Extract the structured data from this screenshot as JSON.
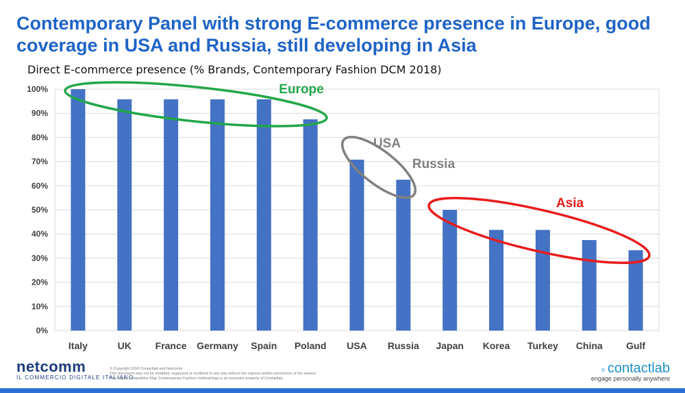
{
  "title": "Contemporary Panel with strong E-commerce presence in Europe, good coverage in USA and Russia, still developing in Asia",
  "subtitle": "Direct E-commerce presence (% Brands, Contemporary Fashion DCM 2018)",
  "chart_data": {
    "type": "bar",
    "categories": [
      "Italy",
      "UK",
      "France",
      "Germany",
      "Spain",
      "Poland",
      "USA",
      "Russia",
      "Japan",
      "Korea",
      "Turkey",
      "China",
      "Gulf"
    ],
    "values": [
      100,
      95.8,
      95.8,
      95.8,
      95.8,
      87.5,
      70.8,
      62.5,
      50,
      41.7,
      41.7,
      37.5,
      33.3
    ],
    "ylim": [
      0,
      100
    ],
    "yticks": [
      "0%",
      "10%",
      "20%",
      "30%",
      "40%",
      "50%",
      "60%",
      "70%",
      "80%",
      "90%",
      "100%"
    ],
    "bar_color": "#4472c4",
    "grid": true,
    "annotations": [
      {
        "label": "Europe",
        "color": "#22a64a"
      },
      {
        "label": "USA",
        "color": "#808080"
      },
      {
        "label": "Russia",
        "color": "#808080"
      },
      {
        "label": "Asia",
        "color": "#e81c1c"
      }
    ]
  },
  "footer": {
    "netcomm_logo": "netcomm",
    "netcomm_tagline": "IL COMMERCIO DIGITALE ITALIANO",
    "copyright_lines": [
      "© Copyright 2018 Contactlab and Netcomm",
      "This document may not be modified, organized or reutilized in any way without the express written permission of the owners",
      "The Digital Competitive Map Contemporary Fashion methodology is an exclusive property of Contactlab."
    ],
    "contactlab_logo": "contactlab",
    "contactlab_tagline": "engage personally anywhere"
  }
}
